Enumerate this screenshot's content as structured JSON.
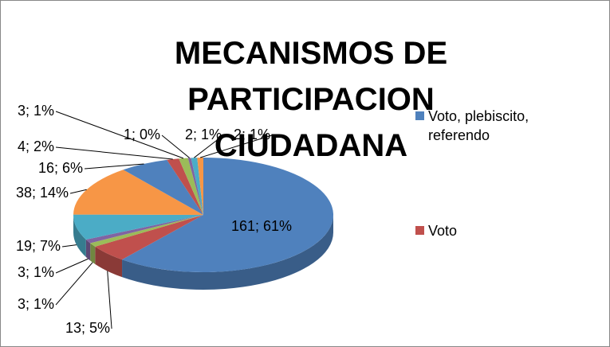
{
  "chart_data": {
    "type": "pie3d",
    "title": "MECANISMOS DE PARTICIPACION CIUDADANA",
    "categories": [
      "Voto, plebiscito, referendo",
      "Voto",
      null,
      null,
      null,
      null,
      null,
      null,
      null,
      null,
      null,
      null
    ],
    "values": [
      161,
      13,
      3,
      3,
      19,
      38,
      16,
      4,
      3,
      1,
      2,
      2
    ],
    "value_labels": [
      "161; 61%",
      "13; 5%",
      "3; 1%",
      "3; 1%",
      "19; 7%",
      "38; 14%",
      "16; 6%",
      "4; 2%",
      "3; 1%",
      "1; 0%",
      "2; 1%",
      "2; 1%"
    ],
    "colors": [
      "#4f81bd",
      "#c0504d",
      "#9bbb59",
      "#8064a2",
      "#4bacc6",
      "#f79646",
      "#4f81bd",
      "#c0504d",
      "#9bbb59",
      "#8064a2",
      "#4bacc6",
      "#f79646"
    ]
  }
}
